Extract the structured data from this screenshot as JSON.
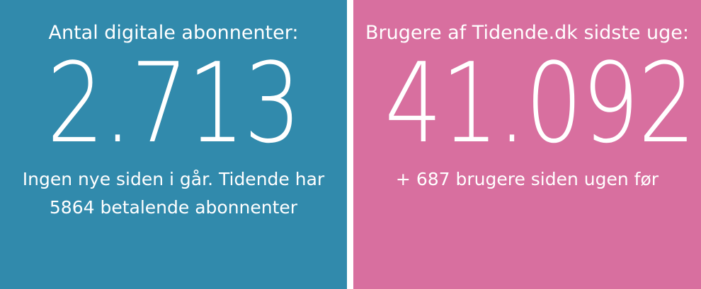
{
  "left_panel": {
    "headline": "Antal digitale abonnenter:",
    "number": "2.713",
    "sub_line_1": "Ingen nye siden i går. Tidende har",
    "sub_line_2": "5864 betalende abonnenter",
    "background": "#318aac"
  },
  "right_panel": {
    "headline": "Brugere af Tidende.dk sidste uge:",
    "number": "41.092",
    "sub_line_1": "+ 687 brugere siden ugen før",
    "background": "#d86f9f"
  }
}
